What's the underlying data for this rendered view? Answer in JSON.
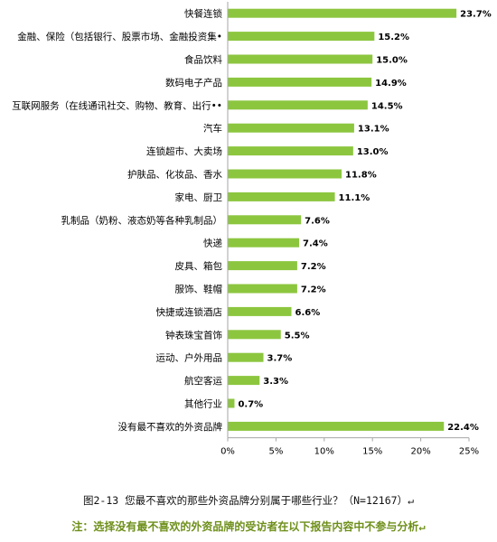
{
  "chart_data": {
    "type": "bar",
    "orientation": "horizontal",
    "categories": [
      "快餐连锁",
      "金融、保险（包括银行、股票市场、金融投资集•",
      "食品饮料",
      "数码电子产品",
      "互联网服务（在线通讯社交、购物、教育、出行••",
      "汽车",
      "连锁超市、大卖场",
      "护肤品、化妆品、香水",
      "家电、厨卫",
      "乳制品（奶粉、液态奶等各种乳制品）",
      "快递",
      "皮具、箱包",
      "服饰、鞋帽",
      "快捷或连锁酒店",
      "钟表珠宝首饰",
      "运动、户外用品",
      "航空客运",
      "其他行业",
      "没有最不喜欢的外资品牌"
    ],
    "values": [
      23.7,
      15.2,
      15.0,
      14.9,
      14.5,
      13.1,
      13.0,
      11.8,
      11.1,
      7.6,
      7.4,
      7.2,
      7.2,
      6.6,
      5.5,
      3.7,
      3.3,
      0.7,
      22.4
    ],
    "value_labels": [
      "23.7%",
      "15.2%",
      "15.0%",
      "14.9%",
      "14.5%",
      "13.1%",
      "13.0%",
      "11.8%",
      "11.1%",
      "7.6%",
      "7.4%",
      "7.2%",
      "7.2%",
      "6.6%",
      "5.5%",
      "3.7%",
      "3.3%",
      "0.7%",
      "22.4%"
    ],
    "xlim": [
      0,
      25
    ],
    "xticks": [
      0,
      5,
      10,
      15,
      20,
      25
    ],
    "xtick_labels": [
      "0%",
      "5%",
      "10%",
      "15%",
      "20%",
      "25%"
    ],
    "bar_color": "#8cc63f",
    "grid": false,
    "legend": "none"
  },
  "caption": "图2-13 您最不喜欢的那些外资品牌分别属于哪些行业？（N=12167）↵",
  "note": "注：选择没有最不喜欢的外资品牌的受访者在以下报告内容中不参与分析↵"
}
